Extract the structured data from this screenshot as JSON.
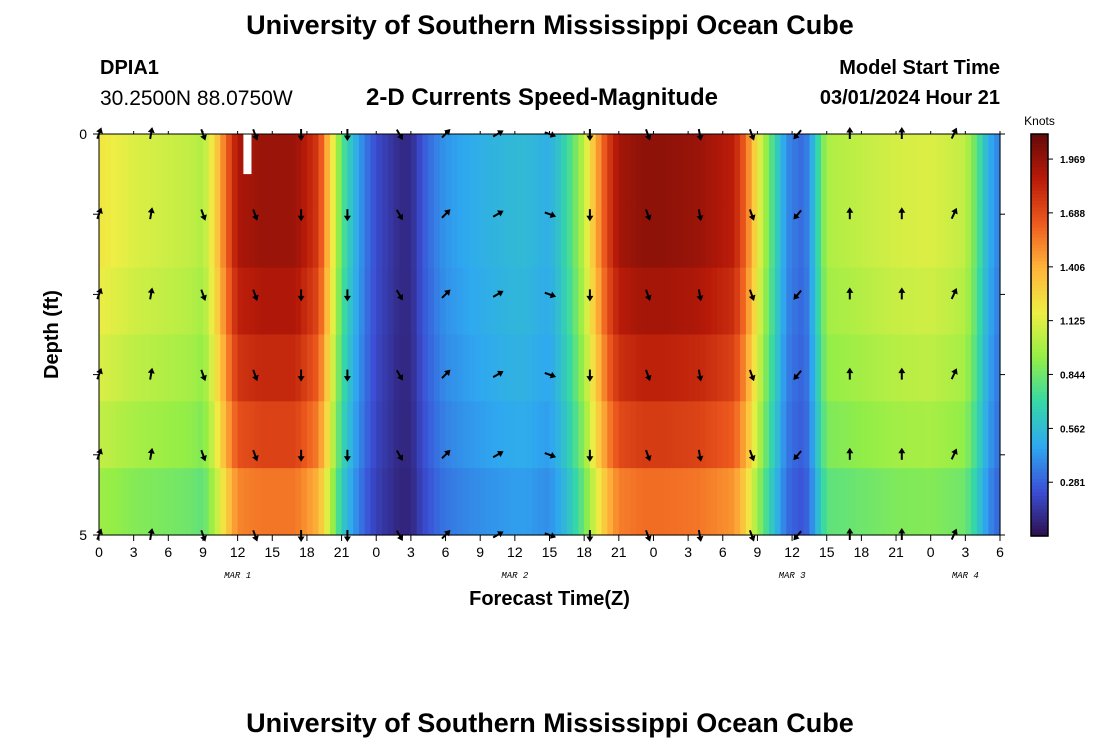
{
  "page": {
    "title_top": "University of Southern Mississippi Ocean Cube",
    "title_bottom": "University of Southern Mississippi Ocean Cube",
    "station_id": "DPIA1",
    "coordinates": "30.2500N  88.0750W",
    "subtitle": "2-D Currents Speed-Magnitude",
    "model_start_label": "Model Start Time",
    "model_start_value": "03/01/2024 Hour 21"
  },
  "colors": {
    "scale": [
      "#2d0f4e",
      "#3b4fd6",
      "#2fa8f0",
      "#35d8a6",
      "#94ee46",
      "#eeee44",
      "#ffb43a",
      "#ee5a1e",
      "#b81a08",
      "#640a0a"
    ],
    "arrow": "#000000",
    "missing": "#ffffff"
  },
  "chart_data": {
    "type": "heatmap",
    "title": "2-D Currents Speed-Magnitude",
    "xlabel": "Forecast Time(Z)",
    "ylabel": "Depth (ft)",
    "x_hours": [
      0,
      3,
      6,
      9,
      12,
      15,
      18,
      21,
      24,
      27,
      30,
      33,
      36,
      39,
      42,
      45,
      48,
      51,
      54,
      57,
      60,
      63,
      66,
      69,
      72,
      75,
      78
    ],
    "x_tick_labels": [
      "0",
      "3",
      "6",
      "9",
      "12",
      "15",
      "18",
      "21",
      "0",
      "3",
      "6",
      "9",
      "12",
      "15",
      "18",
      "21",
      "0",
      "3",
      "6",
      "9",
      "12",
      "15",
      "18",
      "21",
      "0",
      "3",
      "6"
    ],
    "xlim": [
      0,
      78
    ],
    "date_labels": [
      {
        "label": "MAR 1",
        "hour": 12
      },
      {
        "label": "MAR 2",
        "hour": 36
      },
      {
        "label": "MAR 3",
        "hour": 60
      },
      {
        "label": "MAR 4",
        "hour": 75
      }
    ],
    "y_tick_labels": [
      "0",
      "5"
    ],
    "ylim": [
      0,
      5
    ],
    "depth_layers": [
      0,
      1,
      2,
      3,
      4,
      5
    ],
    "colorbar": {
      "unit_label": "Knots",
      "min": 0.0,
      "max": 2.1,
      "tick_values": [
        0.281,
        0.562,
        0.844,
        1.125,
        1.406,
        1.688,
        1.969
      ],
      "tick_labels": [
        "0.281",
        "0.562",
        "0.844",
        "1.125",
        "1.406",
        "1.688",
        "1.969"
      ]
    },
    "speed_profile_knots": {
      "hours": [
        0,
        3,
        6,
        8,
        9,
        10,
        11,
        12,
        14,
        17,
        19,
        20,
        21,
        22,
        23,
        24,
        26,
        27,
        28,
        29,
        30,
        32,
        34,
        36,
        37,
        38,
        39,
        40,
        41,
        42,
        43,
        44,
        45,
        47,
        49,
        52,
        55,
        56,
        57,
        58,
        59,
        59.5,
        60,
        61,
        61.5,
        62,
        63,
        66,
        69,
        72,
        75,
        76,
        77,
        78
      ],
      "values": [
        1.2,
        1.12,
        1.08,
        1.05,
        1.0,
        1.25,
        1.6,
        1.9,
        1.95,
        1.95,
        1.75,
        1.3,
        0.8,
        0.55,
        0.35,
        0.22,
        0.1,
        0.1,
        0.25,
        0.35,
        0.42,
        0.48,
        0.52,
        0.55,
        0.55,
        0.52,
        0.5,
        0.62,
        0.8,
        1.05,
        1.4,
        1.72,
        1.92,
        1.98,
        1.98,
        1.95,
        1.85,
        1.6,
        1.2,
        0.85,
        0.55,
        0.4,
        0.35,
        0.3,
        0.4,
        0.6,
        1.0,
        1.05,
        1.1,
        1.12,
        1.05,
        0.8,
        0.5,
        0.35
      ]
    },
    "depth_factor": [
      1.0,
      1.0,
      0.97,
      0.93,
      0.88,
      0.8
    ],
    "arrow_hours": [
      0,
      4.5,
      9,
      13.5,
      17.5,
      21.5,
      26,
      30,
      34.5,
      39,
      42.5,
      47.5,
      52,
      56.5,
      60.5,
      65,
      69.5,
      74
    ],
    "arrow_dirs_deg": [
      20,
      10,
      160,
      160,
      180,
      180,
      150,
      45,
      60,
      110,
      180,
      160,
      170,
      160,
      220,
      0,
      0,
      25
    ],
    "missing_data": [
      {
        "hour_start": 12.5,
        "hour_end": 13.2,
        "depth_start": 0,
        "depth_end": 0.5
      }
    ]
  }
}
